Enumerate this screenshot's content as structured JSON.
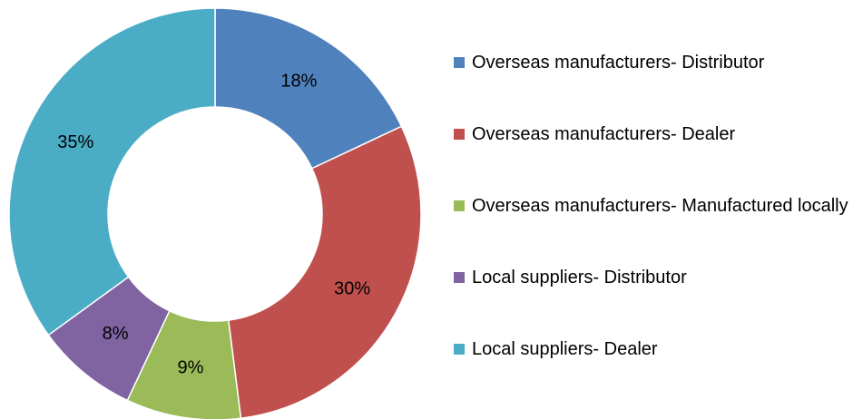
{
  "chart_data": {
    "type": "donut",
    "categories": [
      "Overseas manufacturers- Distributor",
      "Overseas manufacturers- Dealer",
      "Overseas manufacturers- Manufactured locally",
      "Local suppliers- Distributor",
      "Local suppliers- Dealer"
    ],
    "values": [
      18,
      30,
      9,
      8,
      35
    ],
    "value_labels": [
      "18%",
      "30%",
      "9%",
      "8%",
      "35%"
    ],
    "colors": [
      "#4f81bd",
      "#c0504d",
      "#9bbb59",
      "#8064a2",
      "#4bacc6"
    ],
    "legend": "right"
  }
}
